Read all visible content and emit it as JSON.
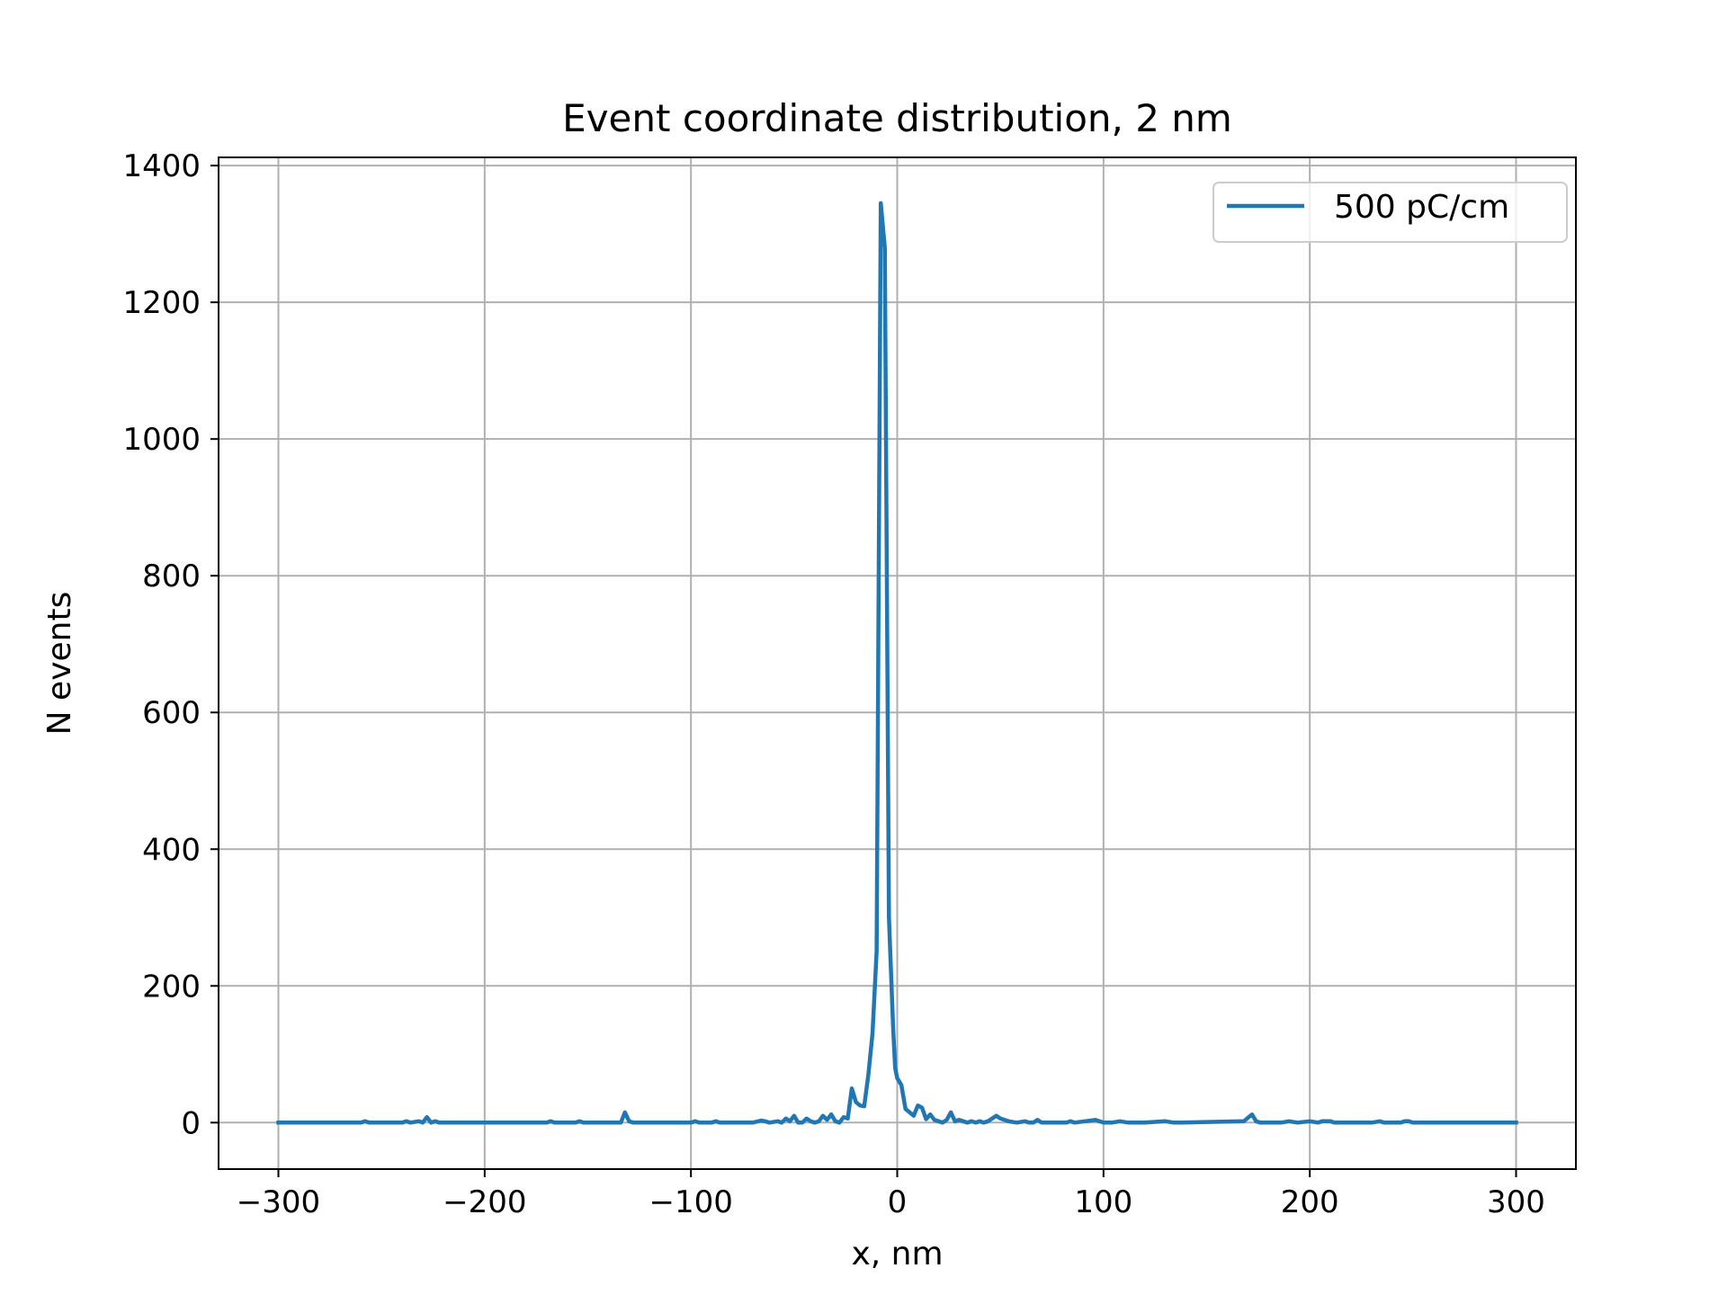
{
  "chart_data": {
    "type": "line",
    "title": "Event coordinate distribution, 2 nm",
    "xlabel": "x, nm",
    "ylabel": "N events",
    "xlim": [
      -329,
      329
    ],
    "ylim": [
      -68,
      1412
    ],
    "xticks": [
      -300,
      -200,
      -100,
      0,
      100,
      200,
      300
    ],
    "xtick_labels": [
      "−300",
      "−200",
      "−100",
      "0",
      "100",
      "200",
      "300"
    ],
    "yticks": [
      0,
      200,
      400,
      600,
      800,
      1000,
      1200,
      1400
    ],
    "ytick_labels": [
      "0",
      "200",
      "400",
      "600",
      "800",
      "1000",
      "1200",
      "1400"
    ],
    "grid": true,
    "legend_position": "top-right",
    "series": [
      {
        "name": "500 pC/cm",
        "color": "#1f77b4",
        "x": [
          -300,
          -260,
          -258,
          -256,
          -240,
          -238,
          -236,
          -232,
          -230,
          -228,
          -226,
          -224,
          -222,
          -220,
          -200,
          -170,
          -168,
          -166,
          -156,
          -154,
          -152,
          -134,
          -132,
          -130,
          -128,
          -100,
          -98,
          -96,
          -90,
          -88,
          -86,
          -70,
          -66,
          -64,
          -62,
          -58,
          -56,
          -54,
          -52,
          -50,
          -48,
          -46,
          -44,
          -42,
          -40,
          -38,
          -36,
          -34,
          -32,
          -30,
          -28,
          -26,
          -24,
          -22,
          -20,
          -18,
          -16,
          -14,
          -12,
          -10,
          -8,
          -6,
          -4,
          -2,
          -1,
          0,
          2,
          4,
          6,
          8,
          10,
          12,
          14,
          16,
          18,
          20,
          22,
          24,
          26,
          28,
          30,
          32,
          34,
          36,
          38,
          40,
          42,
          44,
          46,
          48,
          50,
          54,
          58,
          62,
          64,
          66,
          68,
          70,
          80,
          82,
          84,
          86,
          96,
          100,
          104,
          108,
          112,
          116,
          120,
          130,
          134,
          136,
          138,
          168,
          172,
          174,
          176,
          186,
          190,
          194,
          200,
          204,
          206,
          210,
          212,
          230,
          234,
          236,
          240,
          244,
          246,
          248,
          250,
          260,
          300
        ],
        "y": [
          0,
          0,
          2,
          0,
          0,
          2,
          0,
          2,
          0,
          8,
          0,
          2,
          0,
          0,
          0,
          0,
          2,
          0,
          0,
          2,
          0,
          0,
          15,
          2,
          0,
          0,
          2,
          0,
          0,
          2,
          0,
          0,
          3,
          2,
          0,
          2,
          0,
          6,
          2,
          10,
          0,
          0,
          6,
          2,
          0,
          2,
          10,
          4,
          12,
          2,
          0,
          8,
          6,
          50,
          30,
          25,
          24,
          70,
          130,
          250,
          1345,
          1280,
          300,
          140,
          80,
          65,
          55,
          20,
          15,
          10,
          25,
          22,
          5,
          12,
          4,
          2,
          0,
          4,
          15,
          2,
          4,
          2,
          0,
          2,
          0,
          2,
          0,
          2,
          6,
          10,
          6,
          2,
          0,
          2,
          0,
          0,
          4,
          0,
          0,
          0,
          2,
          0,
          4,
          0,
          0,
          2,
          0,
          0,
          0,
          2,
          0,
          0,
          0,
          2,
          12,
          2,
          0,
          0,
          2,
          0,
          2,
          0,
          2,
          2,
          0,
          0,
          2,
          0,
          0,
          0,
          2,
          2,
          0,
          0,
          0
        ]
      }
    ]
  }
}
